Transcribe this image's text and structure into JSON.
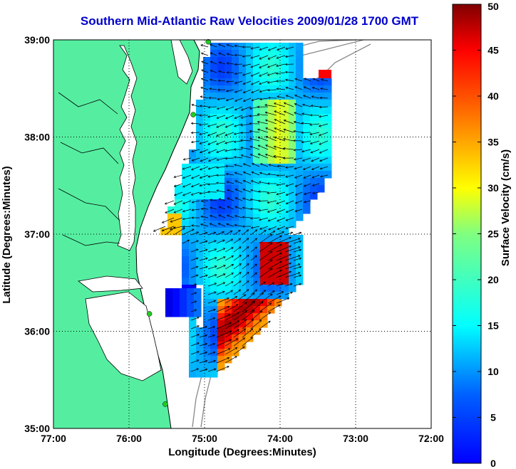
{
  "title": "Southern Mid-Atlantic Raw Velocities 2009/01/28 1700 GMT",
  "x_axis": {
    "label": "Longitude (Degrees:Minutes)",
    "ticks": [
      "77:00",
      "76:00",
      "75:00",
      "74:00",
      "73:00",
      "72:00"
    ]
  },
  "y_axis": {
    "label": "Latitude (Degrees:Minutes)",
    "ticks": [
      "39:00",
      "38:00",
      "37:00",
      "36:00",
      "35:00"
    ]
  },
  "colorbar": {
    "label": "Surface Velocity (cm/s)",
    "ticks": [
      "50",
      "45",
      "40",
      "35",
      "30",
      "25",
      "20",
      "15",
      "10",
      "5",
      "0"
    ],
    "min": 0,
    "max": 50,
    "colormap": "jet"
  },
  "map_extent": {
    "lon_min": -77,
    "lon_max": -72,
    "lat_min": 35,
    "lat_max": 39
  },
  "grid": "dotted",
  "colors": {
    "land": "#55eea0",
    "water": "#ffffff",
    "title": "#0000cc",
    "arrows": "#000000",
    "coastline": "#000000",
    "isobath": "#888888",
    "station": "#22cc22"
  },
  "stations": [
    {
      "lon": -74.95,
      "lat": 38.98
    },
    {
      "lon": -75.15,
      "lat": 38.23
    },
    {
      "lon": -75.73,
      "lat": 36.18
    },
    {
      "lon": -75.52,
      "lat": 35.25
    }
  ]
}
